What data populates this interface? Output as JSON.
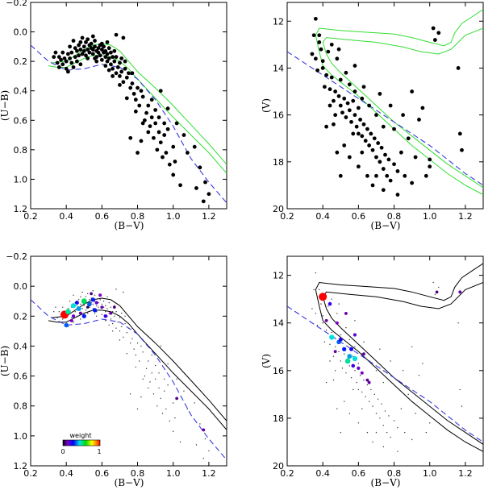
{
  "chart_data": [
    {
      "id": "top-left",
      "type": "scatter",
      "xlabel": "(B−V)",
      "ylabel": "(U−B)",
      "xlim": [
        0.2,
        1.3
      ],
      "ylim": [
        -0.2,
        1.2
      ],
      "y_inverted": true,
      "xticks": [
        "0.2",
        "0.4",
        "0.6",
        "0.8",
        "1.0",
        "1.2"
      ],
      "yticks": [
        "−0.2",
        "0.0",
        "0.2",
        "0.4",
        "0.6",
        "0.8",
        "1.0",
        "1.2"
      ],
      "xtick_values": [
        0.2,
        0.4,
        0.6,
        0.8,
        1.0,
        1.2
      ],
      "ytick_values": [
        -0.2,
        0.0,
        0.2,
        0.4,
        0.6,
        0.8,
        1.0,
        1.2
      ],
      "isochrone_color": "#33dd33",
      "points": [
        [
          0.33,
          0.17
        ],
        [
          0.35,
          0.21
        ],
        [
          0.36,
          0.17
        ],
        [
          0.37,
          0.19
        ],
        [
          0.38,
          0.22
        ],
        [
          0.38,
          0.14
        ],
        [
          0.39,
          0.18
        ],
        [
          0.4,
          0.2
        ],
        [
          0.4,
          0.25
        ],
        [
          0.41,
          0.15
        ],
        [
          0.41,
          0.27
        ],
        [
          0.42,
          0.18
        ],
        [
          0.43,
          0.21
        ],
        [
          0.43,
          0.14
        ],
        [
          0.44,
          0.24
        ],
        [
          0.45,
          0.17
        ],
        [
          0.45,
          0.11
        ],
        [
          0.46,
          0.2
        ],
        [
          0.46,
          0.13
        ],
        [
          0.47,
          0.09
        ],
        [
          0.47,
          0.16
        ],
        [
          0.48,
          0.12
        ],
        [
          0.48,
          0.07
        ],
        [
          0.49,
          0.15
        ],
        [
          0.49,
          0.04
        ],
        [
          0.5,
          0.1
        ],
        [
          0.5,
          0.13
        ],
        [
          0.51,
          0.07
        ],
        [
          0.51,
          0.16
        ],
        [
          0.52,
          0.12
        ],
        [
          0.52,
          0.05
        ],
        [
          0.53,
          0.09
        ],
        [
          0.53,
          0.14
        ],
        [
          0.54,
          0.11
        ],
        [
          0.54,
          0.08
        ],
        [
          0.55,
          0.15
        ],
        [
          0.55,
          0.12
        ],
        [
          0.56,
          0.1
        ],
        [
          0.56,
          0.06
        ],
        [
          0.57,
          0.13
        ],
        [
          0.57,
          0.17
        ],
        [
          0.58,
          0.11
        ],
        [
          0.58,
          0.14
        ],
        [
          0.59,
          0.09
        ],
        [
          0.59,
          0.16
        ],
        [
          0.6,
          0.12
        ],
        [
          0.6,
          0.19
        ],
        [
          0.61,
          0.14
        ],
        [
          0.61,
          0.1
        ],
        [
          0.62,
          0.17
        ],
        [
          0.62,
          0.13
        ],
        [
          0.63,
          0.2
        ],
        [
          0.63,
          0.15
        ],
        [
          0.64,
          0.11
        ],
        [
          0.64,
          0.18
        ],
        [
          0.65,
          0.22
        ],
        [
          0.65,
          0.14
        ],
        [
          0.66,
          0.17
        ],
        [
          0.66,
          0.25
        ],
        [
          0.67,
          0.13
        ],
        [
          0.67,
          0.2
        ],
        [
          0.68,
          0.17
        ],
        [
          0.68,
          0.28
        ],
        [
          0.69,
          0.24
        ],
        [
          0.7,
          0.21
        ],
        [
          0.7,
          0.3
        ],
        [
          0.71,
          0.18
        ],
        [
          0.71,
          0.27
        ],
        [
          0.72,
          0.34
        ],
        [
          0.73,
          0.25
        ],
        [
          0.74,
          0.31
        ],
        [
          0.75,
          0.28
        ],
        [
          0.76,
          0.38
        ],
        [
          0.77,
          0.35
        ],
        [
          0.78,
          0.42
        ],
        [
          0.79,
          0.46
        ],
        [
          0.8,
          0.38
        ],
        [
          0.81,
          0.5
        ],
        [
          0.82,
          0.74
        ],
        [
          0.83,
          0.44
        ],
        [
          0.84,
          0.6
        ],
        [
          0.85,
          0.55
        ],
        [
          0.86,
          0.68
        ],
        [
          0.87,
          0.64
        ],
        [
          0.88,
          0.58
        ],
        [
          0.89,
          0.72
        ],
        [
          0.9,
          0.53
        ],
        [
          0.9,
          0.62
        ],
        [
          0.91,
          0.8
        ],
        [
          0.92,
          0.68
        ],
        [
          0.93,
          0.75
        ],
        [
          0.94,
          0.85
        ],
        [
          0.95,
          0.7
        ],
        [
          0.96,
          0.82
        ],
        [
          0.97,
          0.66
        ],
        [
          0.98,
          0.9
        ],
        [
          1.0,
          0.78
        ],
        [
          1.0,
          0.97
        ],
        [
          1.01,
          0.88
        ],
        [
          1.04,
          1.04
        ],
        [
          0.55,
          0.03
        ],
        [
          0.63,
          0.07
        ],
        [
          0.68,
          0.02
        ],
        [
          0.72,
          0.04
        ],
        [
          0.48,
          0.22
        ],
        [
          0.52,
          0.18
        ],
        [
          0.57,
          0.2
        ],
        [
          0.62,
          0.23
        ],
        [
          0.66,
          0.3
        ],
        [
          0.74,
          0.45
        ],
        [
          0.79,
          0.54
        ],
        [
          0.83,
          0.62
        ],
        [
          0.86,
          0.5
        ],
        [
          0.92,
          0.58
        ],
        [
          0.95,
          0.62
        ],
        [
          1.08,
          0.82
        ],
        [
          1.12,
          0.78
        ],
        [
          1.15,
          0.92
        ],
        [
          1.18,
          1.02
        ],
        [
          1.2,
          1.1
        ],
        [
          1.17,
          1.15
        ],
        [
          1.13,
          1.06
        ],
        [
          0.76,
          0.72
        ],
        [
          0.8,
          0.82
        ],
        [
          0.34,
          0.14
        ],
        [
          0.36,
          0.24
        ],
        [
          0.42,
          0.1
        ],
        [
          0.44,
          0.06
        ],
        [
          0.56,
          0.18
        ],
        [
          0.6,
          0.08
        ],
        [
          0.64,
          0.26
        ],
        [
          0.7,
          0.36
        ],
        [
          0.73,
          0.2
        ],
        [
          0.77,
          0.28
        ],
        [
          0.82,
          0.4
        ],
        [
          0.88,
          0.46
        ],
        [
          0.93,
          0.4
        ],
        [
          0.97,
          0.52
        ],
        [
          1.02,
          0.62
        ],
        [
          1.06,
          0.7
        ]
      ]
    },
    {
      "id": "top-right",
      "type": "scatter",
      "xlabel": "(B−V)",
      "ylabel": "(V)",
      "xlim": [
        0.2,
        1.3
      ],
      "ylim": [
        11.2,
        20
      ],
      "y_inverted": true,
      "xticks": [
        "0.2",
        "0.4",
        "0.6",
        "0.8",
        "1.0",
        "1.2"
      ],
      "yticks": [
        "12",
        "14",
        "16",
        "18",
        "20"
      ],
      "xtick_values": [
        0.2,
        0.4,
        0.6,
        0.8,
        1.0,
        1.2
      ],
      "ytick_values": [
        12,
        14,
        16,
        18,
        20
      ],
      "isochrone_color": "#33dd33",
      "points": [
        [
          0.36,
          11.9
        ],
        [
          0.35,
          12.6
        ],
        [
          0.38,
          12.9
        ],
        [
          0.34,
          13.4
        ],
        [
          0.4,
          13.7
        ],
        [
          0.37,
          14.1
        ],
        [
          0.42,
          14.3
        ],
        [
          0.41,
          14.8
        ],
        [
          0.45,
          14.4
        ],
        [
          0.44,
          14.9
        ],
        [
          0.47,
          15.0
        ],
        [
          0.46,
          15.4
        ],
        [
          0.49,
          15.2
        ],
        [
          0.5,
          15.6
        ],
        [
          0.52,
          15.3
        ],
        [
          0.51,
          15.9
        ],
        [
          0.54,
          15.5
        ],
        [
          0.53,
          16.1
        ],
        [
          0.55,
          15.8
        ],
        [
          0.56,
          16.3
        ],
        [
          0.57,
          15.4
        ],
        [
          0.58,
          16.0
        ],
        [
          0.59,
          16.5
        ],
        [
          0.6,
          15.7
        ],
        [
          0.6,
          16.8
        ],
        [
          0.61,
          16.2
        ],
        [
          0.62,
          16.9
        ],
        [
          0.63,
          16.4
        ],
        [
          0.64,
          17.1
        ],
        [
          0.65,
          16.6
        ],
        [
          0.66,
          17.3
        ],
        [
          0.67,
          16.8
        ],
        [
          0.68,
          17.5
        ],
        [
          0.69,
          17.0
        ],
        [
          0.7,
          17.8
        ],
        [
          0.71,
          17.2
        ],
        [
          0.72,
          18.0
        ],
        [
          0.73,
          17.4
        ],
        [
          0.74,
          18.3
        ],
        [
          0.75,
          17.7
        ],
        [
          0.76,
          18.6
        ],
        [
          0.77,
          17.9
        ],
        [
          0.78,
          18.8
        ],
        [
          0.8,
          18.1
        ],
        [
          0.82,
          18.4
        ],
        [
          0.84,
          17.6
        ],
        [
          0.86,
          18.6
        ],
        [
          0.88,
          17.0
        ],
        [
          0.9,
          18.9
        ],
        [
          0.92,
          17.8
        ],
        [
          0.45,
          13.0
        ],
        [
          0.48,
          13.6
        ],
        [
          0.4,
          14.0
        ],
        [
          0.43,
          13.3
        ],
        [
          0.5,
          14.5
        ],
        [
          0.55,
          14.7
        ],
        [
          0.58,
          15.0
        ],
        [
          0.62,
          15.3
        ],
        [
          0.66,
          15.6
        ],
        [
          0.7,
          16.0
        ],
        [
          0.74,
          16.5
        ],
        [
          0.52,
          17.3
        ],
        [
          0.55,
          17.8
        ],
        [
          0.6,
          18.2
        ],
        [
          0.65,
          18.6
        ],
        [
          0.68,
          19.0
        ],
        [
          0.5,
          18.6
        ],
        [
          0.48,
          17.6
        ],
        [
          0.46,
          16.4
        ],
        [
          0.42,
          16.5
        ],
        [
          1.02,
          12.3
        ],
        [
          1.05,
          12.5
        ],
        [
          1.03,
          12.8
        ],
        [
          1.16,
          14.0
        ],
        [
          1.17,
          16.8
        ],
        [
          1.18,
          17.5
        ],
        [
          1.0,
          17.9
        ],
        [
          1.0,
          18.2
        ],
        [
          0.98,
          18.6
        ],
        [
          0.94,
          16.2
        ],
        [
          0.96,
          15.7
        ],
        [
          0.9,
          15.0
        ],
        [
          0.85,
          16.0
        ],
        [
          0.8,
          16.6
        ],
        [
          0.78,
          15.6
        ],
        [
          0.72,
          15.1
        ],
        [
          0.63,
          14.8
        ],
        [
          0.58,
          13.9
        ],
        [
          0.53,
          14.2
        ],
        [
          0.49,
          13.2
        ],
        [
          0.44,
          15.6
        ],
        [
          0.47,
          16.0
        ],
        [
          0.57,
          16.8
        ],
        [
          0.62,
          17.6
        ],
        [
          0.7,
          18.6
        ],
        [
          0.74,
          19.2
        ],
        [
          0.82,
          19.4
        ],
        [
          0.38,
          12.6
        ],
        [
          0.39,
          13.2
        ],
        [
          0.36,
          13.6
        ]
      ]
    },
    {
      "id": "bottom-left",
      "type": "scatter",
      "xlabel": "(B−V)",
      "ylabel": "(U−B)",
      "xlim": [
        0.2,
        1.3
      ],
      "ylim": [
        -0.2,
        1.2
      ],
      "y_inverted": true,
      "xticks": [
        "0.2",
        "0.4",
        "0.6",
        "0.8",
        "1.0",
        "1.2"
      ],
      "yticks": [
        "−0.2",
        "0.0",
        "0.2",
        "0.4",
        "0.6",
        "0.8",
        "1.0",
        "1.2"
      ],
      "xtick_values": [
        0.2,
        0.4,
        0.6,
        0.8,
        1.0,
        1.2
      ],
      "ytick_values": [
        -0.2,
        0.0,
        0.2,
        0.4,
        0.6,
        0.8,
        1.0,
        1.2
      ],
      "isochrone_color": "#000000",
      "weighted_points": [
        [
          0.39,
          0.19,
          1.0
        ],
        [
          0.41,
          0.17,
          0.5
        ],
        [
          0.44,
          0.13,
          0.45
        ],
        [
          0.47,
          0.15,
          0.4
        ],
        [
          0.5,
          0.1,
          0.55
        ],
        [
          0.53,
          0.12,
          0.35
        ],
        [
          0.55,
          0.09,
          0.3
        ],
        [
          0.57,
          0.11,
          0.15
        ],
        [
          0.6,
          0.14,
          0.1
        ],
        [
          0.54,
          0.05,
          0.08
        ],
        [
          0.59,
          0.06,
          0.12
        ],
        [
          0.44,
          0.2,
          0.15
        ],
        [
          0.48,
          0.18,
          0.1
        ],
        [
          0.65,
          0.18,
          0.1
        ],
        [
          0.62,
          0.2,
          0.2
        ],
        [
          0.4,
          0.26,
          0.35
        ],
        [
          0.52,
          0.14,
          0.05
        ],
        [
          0.67,
          0.14,
          0.08
        ],
        [
          0.56,
          0.16,
          0.3
        ],
        [
          0.46,
          0.11,
          0.25
        ],
        [
          1.02,
          0.75,
          0.08
        ],
        [
          1.17,
          0.96,
          0.1
        ],
        [
          0.5,
          0.2,
          0.3
        ],
        [
          0.43,
          0.23,
          0.12
        ]
      ],
      "colorbar": {
        "title": "weight",
        "min_label": "0",
        "max_label": "1"
      }
    },
    {
      "id": "bottom-right",
      "type": "scatter",
      "xlabel": "(B−V)",
      "ylabel": "(V)",
      "xlim": [
        0.2,
        1.3
      ],
      "ylim": [
        11.2,
        20
      ],
      "y_inverted": true,
      "xticks": [
        "0.2",
        "0.4",
        "0.6",
        "0.8",
        "1.0",
        "1.2"
      ],
      "yticks": [
        "12",
        "14",
        "16",
        "18",
        "20"
      ],
      "xtick_values": [
        0.2,
        0.4,
        0.6,
        0.8,
        1.0,
        1.2
      ],
      "ytick_values": [
        12,
        14,
        16,
        18,
        20
      ],
      "isochrone_color": "#000000",
      "weighted_points": [
        [
          0.4,
          12.9,
          1.0
        ],
        [
          0.42,
          13.9,
          0.1
        ],
        [
          0.45,
          14.6,
          0.45
        ],
        [
          0.47,
          15.2,
          0.1
        ],
        [
          0.49,
          14.8,
          0.35
        ],
        [
          0.52,
          15.1,
          0.3
        ],
        [
          0.54,
          15.6,
          0.5
        ],
        [
          0.55,
          15.4,
          0.4
        ],
        [
          0.57,
          15.8,
          0.2
        ],
        [
          0.58,
          15.5,
          0.45
        ],
        [
          0.6,
          15.9,
          0.15
        ],
        [
          0.62,
          16.1,
          0.12
        ],
        [
          0.63,
          15.3,
          0.1
        ],
        [
          0.65,
          16.4,
          0.08
        ],
        [
          0.58,
          14.5,
          0.15
        ],
        [
          0.53,
          13.6,
          0.1
        ],
        [
          0.5,
          14.7,
          0.25
        ],
        [
          0.44,
          13.2,
          0.2
        ],
        [
          1.04,
          12.7,
          0.08
        ],
        [
          1.17,
          12.7,
          0.1
        ],
        [
          0.66,
          16.5,
          0.1
        ],
        [
          0.56,
          15.1,
          0.25
        ],
        [
          0.48,
          14.0,
          0.12
        ]
      ]
    }
  ]
}
